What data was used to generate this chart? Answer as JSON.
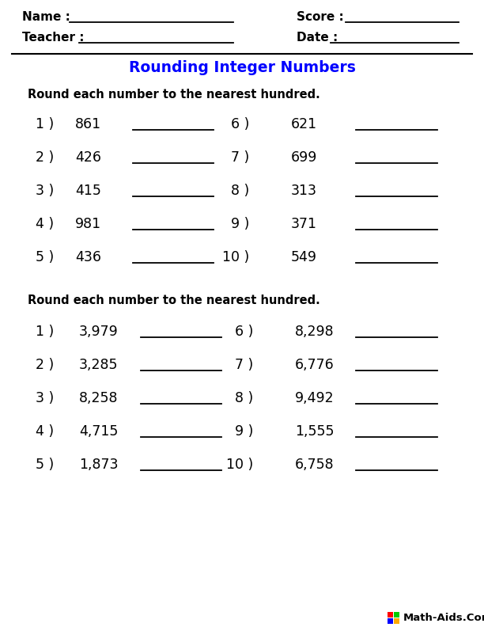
{
  "title": "Rounding Integer Numbers",
  "title_color": "#0000ff",
  "bg_color": "white",
  "instruction1": "Round each number to the nearest hundred.",
  "instruction2": "Round each number to the nearest hundred.",
  "section1_left": [
    {
      "num": "1 )",
      "val": "861"
    },
    {
      "num": "2 )",
      "val": "426"
    },
    {
      "num": "3 )",
      "val": "415"
    },
    {
      "num": "4 )",
      "val": "981"
    },
    {
      "num": "5 )",
      "val": "436"
    }
  ],
  "section1_right": [
    {
      "num": "6 )",
      "val": "621"
    },
    {
      "num": "7 )",
      "val": "699"
    },
    {
      "num": "8 )",
      "val": "313"
    },
    {
      "num": "9 )",
      "val": "371"
    },
    {
      "num": "10 )",
      "val": "549"
    }
  ],
  "section2_left": [
    {
      "num": "1 )",
      "val": "3,979"
    },
    {
      "num": "2 )",
      "val": "3,285"
    },
    {
      "num": "3 )",
      "val": "8,258"
    },
    {
      "num": "4 )",
      "val": "4,715"
    },
    {
      "num": "5 )",
      "val": "1,873"
    }
  ],
  "section2_right": [
    {
      "num": "6 )",
      "val": "8,298"
    },
    {
      "num": "7 )",
      "val": "6,776"
    },
    {
      "num": "8 )",
      "val": "9,492"
    },
    {
      "num": "9 )",
      "val": "1,555"
    },
    {
      "num": "10 )",
      "val": "6,758"
    }
  ],
  "footer": "Math-Aids.Com",
  "font_color": "#000000",
  "line_color": "#000000",
  "separator_color": "#000000",
  "fs_header": 11,
  "fs_title": 13.5,
  "fs_instruction": 10.5,
  "fs_number": 12.5,
  "fs_footer": 9.5,
  "logo_colors": [
    [
      "#ff0000",
      "#00cc00"
    ],
    [
      "#0000ff",
      "#ffaa00"
    ]
  ]
}
